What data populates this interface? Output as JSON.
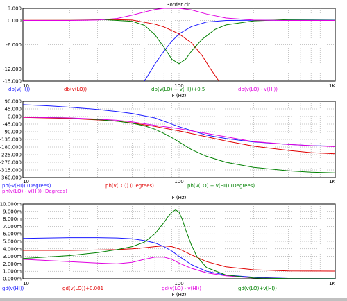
{
  "window": {
    "title": "3order cir"
  },
  "colors": {
    "blue": "#1a1aff",
    "red": "#e00000",
    "green": "#008000",
    "magenta": "#e000e0",
    "grid": "#8c8c8c",
    "axis": "#000000"
  },
  "chart_data": [
    {
      "type": "line",
      "title": "3order cir",
      "xlabel": "F (Hz)",
      "xscale": "log",
      "xlim": [
        10,
        1000
      ],
      "xticks": [
        {
          "value": 10,
          "label": "10"
        },
        {
          "value": 100,
          "label": "100"
        },
        {
          "value": 1000,
          "label": "1K"
        }
      ],
      "ylim": [
        -15,
        3
      ],
      "yticks": [
        {
          "value": 3,
          "label": "3.000"
        },
        {
          "value": 0,
          "label": "0.000"
        },
        {
          "value": -6,
          "label": "-6.000"
        },
        {
          "value": -12,
          "label": "-12.000"
        },
        {
          "value": -15,
          "label": "-15.000"
        }
      ],
      "grid": true,
      "series": [
        {
          "name": "db(v(HI))",
          "color": "blue",
          "x": [
            60,
            70,
            80,
            90,
            100,
            120,
            150,
            200,
            300,
            500,
            1000
          ],
          "y": [
            -15,
            -10.8,
            -7.6,
            -5.1,
            -3.3,
            -1.5,
            -0.4,
            0,
            0.05,
            0.05,
            0.05
          ]
        },
        {
          "name": "db(v(LO))",
          "color": "red",
          "x": [
            10,
            30,
            50,
            70,
            80,
            90,
            100,
            120,
            140,
            160,
            180
          ],
          "y": [
            0.3,
            0.3,
            0.1,
            -0.9,
            -1.6,
            -2.5,
            -3.3,
            -5.5,
            -8.6,
            -12.1,
            -15
          ]
        },
        {
          "name": "db(v(LO) + v(HI))+0.5",
          "color": "green",
          "x": [
            10,
            30,
            50,
            60,
            70,
            80,
            90,
            100,
            110,
            120,
            140,
            170,
            200,
            300,
            500,
            1000
          ],
          "y": [
            0.35,
            0.3,
            -0.2,
            -1.2,
            -3.5,
            -6.6,
            -9.6,
            -10.7,
            -9.6,
            -7.6,
            -4.7,
            -2.2,
            -1.1,
            -0.1,
            0.2,
            0.3
          ]
        },
        {
          "name": "db(v(LO) - v(HI))",
          "color": "magenta",
          "x": [
            10,
            20,
            30,
            40,
            50,
            60,
            70,
            80,
            90,
            100,
            120,
            150,
            200,
            300,
            500,
            1000
          ],
          "y": [
            0,
            0,
            0.1,
            0.5,
            1.3,
            2.1,
            2.7,
            3.0,
            3.05,
            3.0,
            2.6,
            1.6,
            0.6,
            0.1,
            0,
            0
          ]
        }
      ]
    },
    {
      "type": "line",
      "xlabel": "F (Hz)",
      "xscale": "log",
      "xlim": [
        10,
        1000
      ],
      "xticks": [
        {
          "value": 10,
          "label": "10"
        },
        {
          "value": 100,
          "label": "100"
        },
        {
          "value": 1000,
          "label": "1K"
        }
      ],
      "ylim": [
        -360,
        90
      ],
      "yticks": [
        {
          "value": 90,
          "label": "90.000"
        },
        {
          "value": 45,
          "label": "45.000"
        },
        {
          "value": 0,
          "label": "0.000"
        },
        {
          "value": -45,
          "label": "-45.000"
        },
        {
          "value": -90,
          "label": "-90.000"
        },
        {
          "value": -135,
          "label": "-135.000"
        },
        {
          "value": -180,
          "label": "-180.000"
        },
        {
          "value": -225,
          "label": "-225.000"
        },
        {
          "value": -270,
          "label": "-270.000"
        },
        {
          "value": -315,
          "label": "-315.000"
        },
        {
          "value": -360,
          "label": "-360.000"
        }
      ],
      "grid": true,
      "series": [
        {
          "name": "ph(-v(HI)) (Degrees)",
          "color": "blue",
          "x": [
            10,
            15,
            20,
            30,
            40,
            50,
            70,
            100,
            150,
            200,
            300,
            500,
            700,
            1000
          ],
          "y": [
            70,
            62,
            55,
            42,
            30,
            18,
            -8,
            -60,
            -110,
            -130,
            -150,
            -165,
            -172,
            -175
          ]
        },
        {
          "name": "ph(v(LO)) (Degrees)",
          "color": "red",
          "x": [
            10,
            20,
            30,
            40,
            50,
            70,
            100,
            150,
            200,
            300,
            500,
            700,
            1000
          ],
          "y": [
            -5,
            -12,
            -20,
            -28,
            -38,
            -58,
            -85,
            -120,
            -145,
            -175,
            -200,
            -213,
            -220
          ]
        },
        {
          "name": "ph(v(LO) + v(HI)) (Degrees)",
          "color": "green",
          "x": [
            10,
            20,
            30,
            40,
            50,
            60,
            70,
            80,
            90,
            100,
            120,
            150,
            200,
            300,
            500,
            700,
            1000
          ],
          "y": [
            -3,
            -8,
            -18,
            -28,
            -40,
            -55,
            -75,
            -100,
            -125,
            -150,
            -195,
            -235,
            -270,
            -300,
            -320,
            -328,
            -332
          ]
        },
        {
          "name": "ph(v(LO) - v(HI)) (Degrees)",
          "color": "magenta",
          "x": [
            10,
            20,
            30,
            40,
            50,
            70,
            100,
            150,
            200,
            300,
            500,
            700,
            1000
          ],
          "y": [
            -4,
            -8,
            -15,
            -22,
            -32,
            -52,
            -72,
            -100,
            -120,
            -148,
            -165,
            -172,
            -178
          ]
        }
      ]
    },
    {
      "type": "line",
      "xlabel": "F (Hz)",
      "xscale": "log",
      "xlim": [
        10,
        1000
      ],
      "xticks": [
        {
          "value": 10,
          "label": "10"
        },
        {
          "value": 100,
          "label": "100"
        },
        {
          "value": 1000,
          "label": "1K"
        }
      ],
      "ylim": [
        0,
        10
      ],
      "yticks": [
        {
          "value": 10,
          "label": "10.000m"
        },
        {
          "value": 9,
          "label": "9.000m"
        },
        {
          "value": 8,
          "label": "8.000m"
        },
        {
          "value": 7,
          "label": "7.000m"
        },
        {
          "value": 6,
          "label": "6.000m"
        },
        {
          "value": 5,
          "label": "5.000m"
        },
        {
          "value": 4,
          "label": "4.000m"
        },
        {
          "value": 3,
          "label": "3.000m"
        },
        {
          "value": 2,
          "label": "2.000m"
        },
        {
          "value": 1,
          "label": "1.000m"
        },
        {
          "value": 0,
          "label": "0.000m"
        }
      ],
      "grid": true,
      "series": [
        {
          "name": "gd(v(HI))",
          "color": "blue",
          "x": [
            10,
            20,
            30,
            40,
            50,
            60,
            70,
            80,
            90,
            100,
            120,
            150,
            200,
            300,
            500,
            1000
          ],
          "y": [
            5.4,
            5.5,
            5.5,
            5.45,
            5.35,
            5.1,
            4.8,
            4.3,
            3.7,
            3.0,
            1.9,
            1.0,
            0.5,
            0.2,
            0.05,
            0.02
          ]
        },
        {
          "name": "gd(v(LO))+0.001",
          "color": "red",
          "x": [
            10,
            20,
            30,
            40,
            50,
            60,
            70,
            80,
            90,
            100,
            120,
            150,
            200,
            300,
            500,
            1000
          ],
          "y": [
            3.8,
            3.8,
            3.85,
            3.9,
            4.0,
            4.15,
            4.3,
            4.4,
            4.3,
            4.0,
            3.2,
            2.3,
            1.6,
            1.2,
            1.05,
            1.02
          ]
        },
        {
          "name": "gd(v(LO) - v(HI))",
          "color": "magenta",
          "x": [
            10,
            20,
            30,
            40,
            50,
            60,
            70,
            80,
            90,
            100,
            120,
            150,
            200,
            300,
            500,
            1000
          ],
          "y": [
            2.6,
            2.3,
            2.1,
            2.0,
            2.2,
            2.6,
            2.9,
            2.9,
            2.6,
            2.1,
            1.4,
            0.8,
            0.4,
            0.1,
            0.02,
            0.01
          ]
        },
        {
          "name": "gd(v(LO)+v(HI))",
          "color": "green",
          "x": [
            10,
            20,
            30,
            40,
            50,
            60,
            70,
            80,
            85,
            90,
            95,
            100,
            105,
            110,
            120,
            130,
            150,
            200,
            300,
            500,
            1000
          ],
          "y": [
            2.7,
            3.1,
            3.5,
            3.9,
            4.3,
            4.9,
            6.0,
            7.5,
            8.3,
            8.9,
            9.2,
            8.9,
            7.9,
            6.6,
            4.5,
            3.0,
            1.5,
            0.5,
            0.1,
            0.02,
            0.01
          ]
        }
      ]
    }
  ]
}
